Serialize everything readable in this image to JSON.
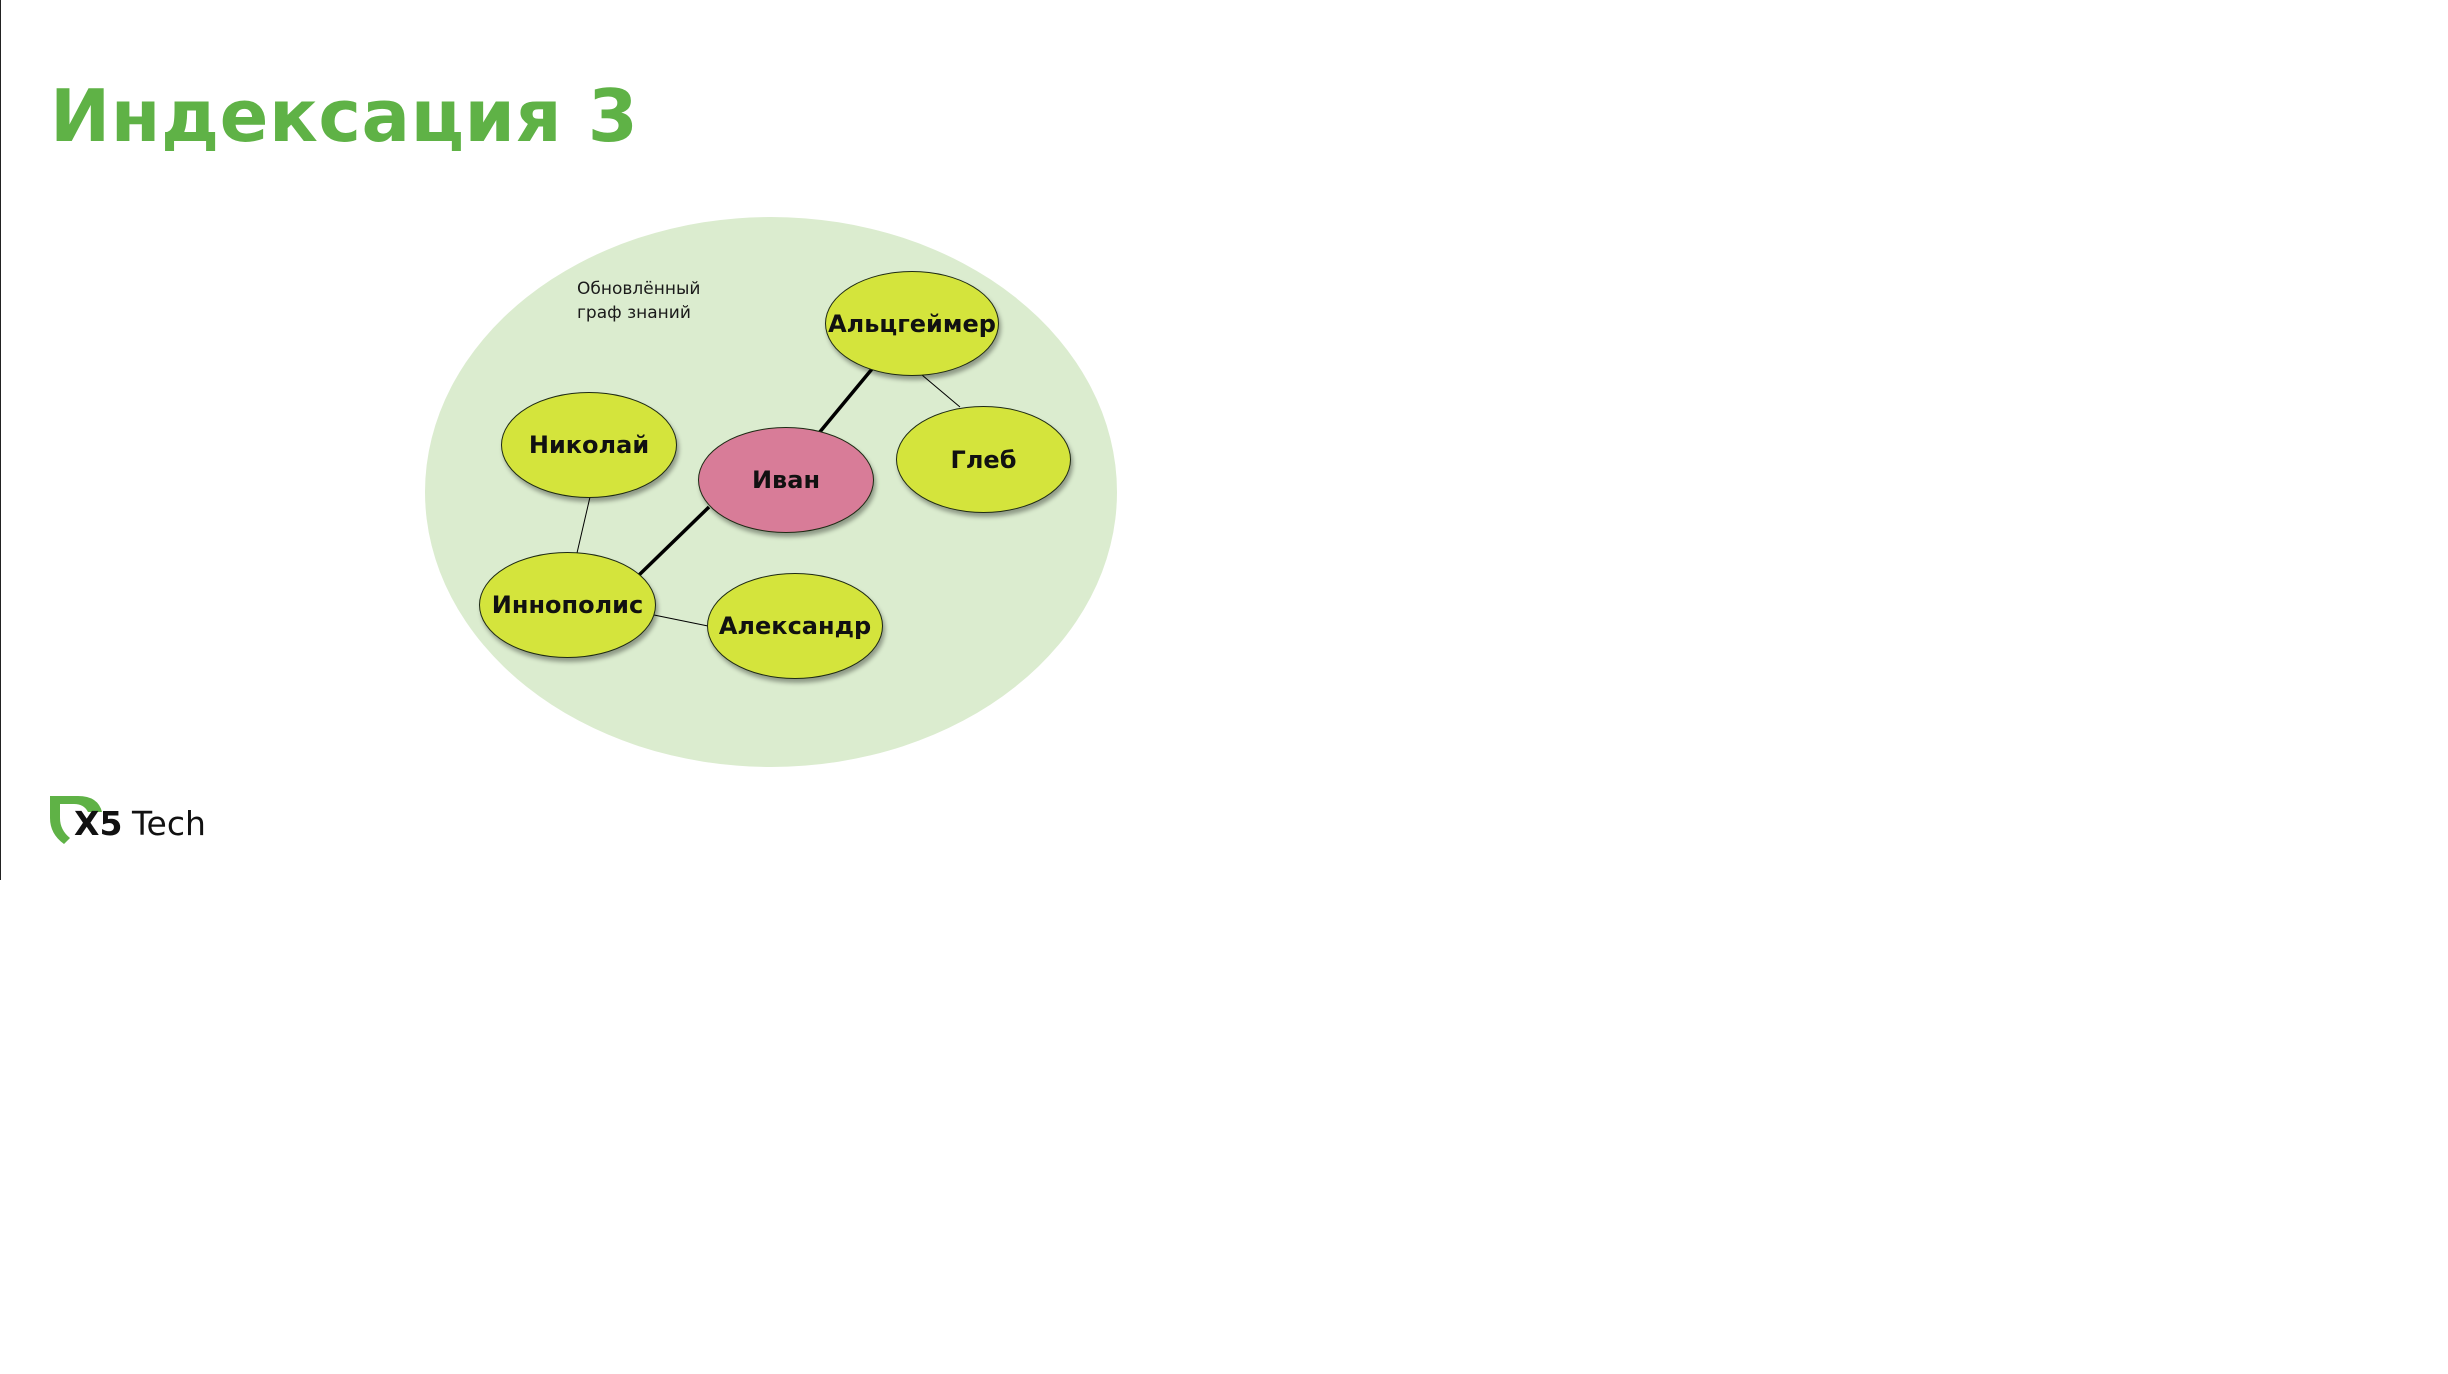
{
  "slide": {
    "title": "Индексация 3"
  },
  "diagram": {
    "note": "Обновлённый\nграф знаний",
    "nodes": [
      {
        "id": "ivan",
        "label": "Иван",
        "kind": "focus"
      },
      {
        "id": "alzheimer",
        "label": "Альцгеймер",
        "kind": "entity"
      },
      {
        "id": "gleb",
        "label": "Глеб",
        "kind": "entity"
      },
      {
        "id": "nikolay",
        "label": "Николай",
        "kind": "entity"
      },
      {
        "id": "innopolis",
        "label": "Иннополис",
        "kind": "entity"
      },
      {
        "id": "alexander",
        "label": "Александр",
        "kind": "entity"
      }
    ],
    "edges": [
      {
        "from": "ivan",
        "to": "alzheimer",
        "weight": "bold"
      },
      {
        "from": "ivan",
        "to": "innopolis",
        "weight": "bold"
      },
      {
        "from": "alzheimer",
        "to": "gleb",
        "weight": "thin"
      },
      {
        "from": "nikolay",
        "to": "innopolis",
        "weight": "thin"
      },
      {
        "from": "innopolis",
        "to": "alexander",
        "weight": "thin"
      }
    ],
    "colors": {
      "background_region": "#dbeccf",
      "entity_node": "#d4e43c",
      "focus_node": "#d87c98",
      "title": "#5fb246"
    }
  },
  "logo": {
    "mark": "X5",
    "text": "Tech"
  }
}
